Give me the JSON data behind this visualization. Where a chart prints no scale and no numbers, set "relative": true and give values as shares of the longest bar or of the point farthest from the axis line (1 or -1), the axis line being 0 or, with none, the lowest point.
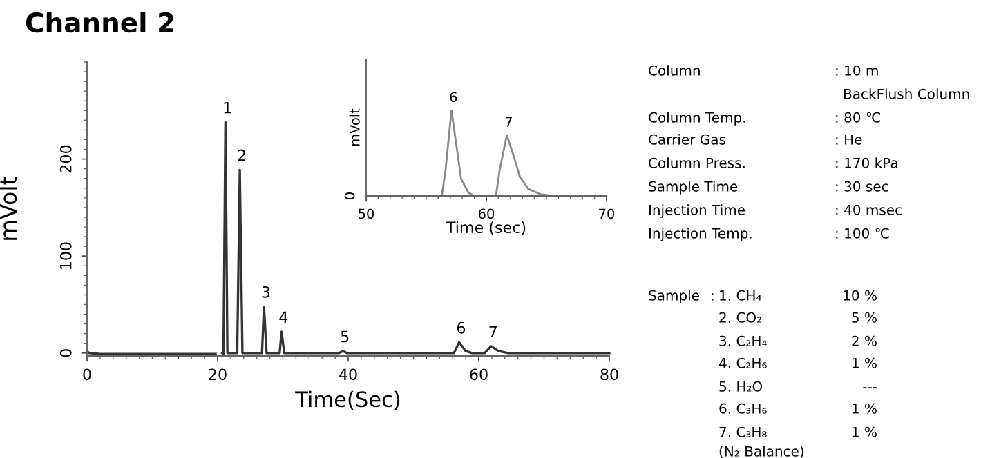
{
  "chart_data": [
    {
      "type": "line",
      "title": "Channel 2",
      "xlabel": "Time(Sec)",
      "ylabel": "mVolt",
      "xlim": [
        0,
        80
      ],
      "xticks": [
        0,
        20,
        40,
        60,
        80
      ],
      "ylim": [
        -3,
        300
      ],
      "yticks": [
        0,
        100,
        200
      ],
      "grid": false,
      "legend": false,
      "series": [
        {
          "color": "#333333",
          "x": [
            0,
            0.3,
            2,
            19.7,
            19.8,
            20.5,
            20.7,
            20.9,
            21.2,
            21.5,
            23.0,
            23.4,
            23.8,
            26.8,
            27.1,
            27.5,
            29.5,
            29.8,
            30.2,
            38.6,
            39.2,
            39.8,
            56.2,
            57.0,
            58.0,
            59.0,
            60.9,
            61.9,
            63.0,
            64.5,
            80
          ],
          "values": [
            2,
            0,
            -1,
            -1,
            null,
            null,
            0,
            -1,
            238,
            0,
            0,
            189,
            0,
            0,
            48,
            0,
            0,
            22,
            0,
            0,
            2,
            0,
            0,
            11,
            2,
            0,
            0,
            7,
            2,
            0,
            0
          ]
        }
      ],
      "annotations": [
        {
          "text": "1",
          "x": 21.2,
          "y": 238
        },
        {
          "text": "2",
          "x": 23.4,
          "y": 189
        },
        {
          "text": "3",
          "x": 27.1,
          "y": 48
        },
        {
          "text": "4",
          "x": 29.8,
          "y": 22
        },
        {
          "text": "5",
          "x": 39.2,
          "y": 2
        },
        {
          "text": "6",
          "x": 57.0,
          "y": 11
        },
        {
          "text": "7",
          "x": 61.9,
          "y": 7
        },
        "Column",
        ": 10 m",
        "BackFlush Column",
        "Column Temp.",
        ": 80 ℃",
        "Carrier Gas",
        ": He",
        "Column Press.",
        ": 170 kPa",
        "Sample Time",
        ": 30 sec",
        "Injection Time",
        ": 40 msec",
        "Injection Temp.",
        ": 100 ℃",
        "Sample",
        ":",
        "1. CH₄",
        "10 %",
        "2. CO₂",
        "5 %",
        "3. C₂H₄",
        "2 %",
        "4. C₂H₆",
        "1 %",
        "5. H₂O",
        "---",
        "6. C₃H₆",
        "1 %",
        "7. C₃H₈",
        "1 %",
        "(N₂ Balance)"
      ]
    },
    {
      "type": "line",
      "xlabel": "Time (sec)",
      "ylabel": "mVolt",
      "relative": true,
      "xlim": [
        50,
        70
      ],
      "xticks": [
        50,
        60,
        70
      ],
      "grid": false,
      "legend": false,
      "series": [
        {
          "color": "#8a8a8a",
          "x": [
            50,
            56.3,
            56.6,
            57.1,
            57.5,
            57.9,
            58.5,
            59.0,
            60.8,
            61.1,
            61.7,
            62.2,
            62.8,
            63.5,
            64.5,
            65.5,
            70
          ],
          "values": [
            0,
            0,
            0.3,
            1,
            0.6,
            0.2,
            0.04,
            0,
            0,
            0.3,
            0.71,
            0.5,
            0.22,
            0.08,
            0.02,
            0,
            0
          ]
        }
      ],
      "annotations": [
        {
          "text": "6",
          "x": 57.1,
          "y": 1
        },
        {
          "text": "7",
          "x": 61.7,
          "y": 0.71
        },
        {
          "text": "0",
          "x": 50,
          "y": 0
        }
      ]
    }
  ]
}
